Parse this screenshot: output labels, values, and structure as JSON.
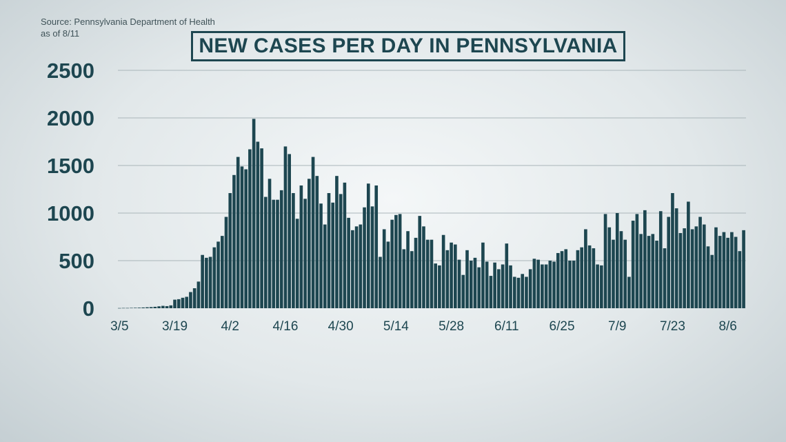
{
  "source_lines": [
    "Source: Pennsylvania Department of Health",
    "as of 8/11"
  ],
  "colors": {
    "bar": "#1d4650",
    "grid": "#a9b5b9",
    "text": "#1d4650"
  },
  "chart_data": {
    "type": "bar",
    "title": "NEW CASES PER DAY IN PENNSYLVANIA",
    "xlabel": "",
    "ylabel": "",
    "ylim": [
      0,
      2500
    ],
    "yticks": [
      0,
      500,
      1000,
      1500,
      2000,
      2500
    ],
    "grid": true,
    "x_tick_labels": [
      "3/5",
      "3/19",
      "4/2",
      "4/16",
      "4/30",
      "5/14",
      "5/28",
      "6/11",
      "6/25",
      "7/9",
      "7/23",
      "8/6"
    ],
    "x_tick_indices": [
      0,
      14,
      28,
      42,
      56,
      70,
      84,
      98,
      112,
      126,
      140,
      154
    ],
    "x_start": "2020-03-05",
    "values": [
      2,
      3,
      3,
      4,
      5,
      6,
      8,
      10,
      12,
      15,
      20,
      25,
      22,
      30,
      90,
      95,
      110,
      120,
      170,
      210,
      280,
      560,
      530,
      540,
      640,
      700,
      760,
      960,
      1210,
      1400,
      1590,
      1490,
      1460,
      1670,
      1990,
      1750,
      1680,
      1170,
      1360,
      1140,
      1140,
      1240,
      1700,
      1620,
      1210,
      940,
      1290,
      1150,
      1360,
      1590,
      1390,
      1100,
      880,
      1210,
      1110,
      1390,
      1200,
      1320,
      950,
      820,
      860,
      880,
      1060,
      1310,
      1070,
      1290,
      540,
      830,
      700,
      930,
      980,
      990,
      620,
      810,
      600,
      740,
      970,
      860,
      720,
      720,
      470,
      450,
      770,
      610,
      690,
      670,
      510,
      350,
      610,
      500,
      530,
      430,
      690,
      490,
      340,
      480,
      410,
      460,
      680,
      450,
      330,
      320,
      360,
      330,
      410,
      520,
      510,
      460,
      460,
      500,
      490,
      580,
      600,
      620,
      500,
      500,
      610,
      640,
      830,
      660,
      630,
      460,
      450,
      990,
      850,
      720,
      1000,
      810,
      720,
      330,
      920,
      990,
      780,
      1030,
      760,
      780,
      710,
      1020,
      630,
      960,
      1210,
      1050,
      790,
      840,
      1120,
      830,
      860,
      960,
      880,
      650,
      560,
      850,
      760,
      800,
      740,
      800,
      750,
      600,
      820
    ]
  }
}
